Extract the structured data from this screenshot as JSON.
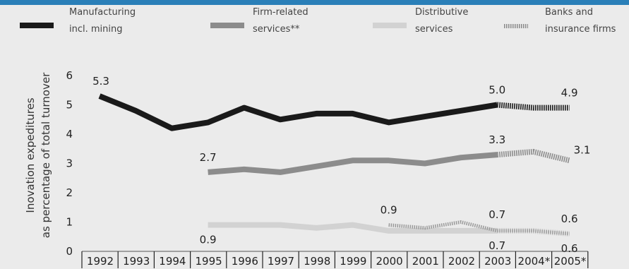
{
  "chart_data": {
    "type": "line",
    "x": [
      "1992",
      "1993",
      "1994",
      "1995",
      "1996",
      "1997",
      "1998",
      "1999",
      "2000",
      "2001",
      "2002",
      "2003",
      "2004*",
      "2005*"
    ],
    "ylabel_lines": [
      "Inovation expeditures",
      "as percentage of total turnover"
    ],
    "ylim": [
      0,
      6
    ],
    "yticks": [
      "0",
      "1",
      "2",
      "3",
      "4",
      "5",
      "6"
    ],
    "legend": [
      {
        "lines": [
          "Manufacturing",
          "incl. mining"
        ],
        "style": "black"
      },
      {
        "lines": [
          "Firm-related",
          "services**"
        ],
        "style": "darkgray"
      },
      {
        "lines": [
          "Distributive",
          "services"
        ],
        "style": "lightgray"
      },
      {
        "lines": [
          "Banks and",
          "insurance firms"
        ],
        "style": "hatched"
      }
    ],
    "series": [
      {
        "name": "Manufacturing incl. mining",
        "color": "#1a1a1a",
        "values": [
          5.3,
          4.8,
          4.2,
          4.4,
          4.9,
          4.5,
          4.7,
          4.7,
          4.4,
          4.6,
          4.8,
          5.0,
          4.9,
          4.9
        ]
      },
      {
        "name": "Firm-related services**",
        "color": "#8c8c8c",
        "values": [
          null,
          null,
          null,
          2.7,
          2.8,
          2.7,
          2.9,
          3.1,
          3.1,
          3.0,
          3.2,
          3.3,
          3.4,
          3.1
        ]
      },
      {
        "name": "Distributive services",
        "color": "#d2d2d2",
        "values": [
          null,
          null,
          null,
          0.9,
          0.9,
          0.9,
          0.8,
          0.9,
          0.7,
          0.7,
          0.7,
          0.7,
          0.7,
          0.6
        ]
      },
      {
        "name": "Banks and insurance firms",
        "color": "#9a9a9a",
        "values": [
          null,
          null,
          null,
          null,
          null,
          null,
          null,
          null,
          0.9,
          0.8,
          1.0,
          0.7,
          0.7,
          0.6
        ]
      }
    ],
    "data_labels": [
      {
        "series": 0,
        "index": 0,
        "text": "5.3",
        "pos": "above"
      },
      {
        "series": 0,
        "index": 11,
        "text": "5.0",
        "pos": "above"
      },
      {
        "series": 0,
        "index": 13,
        "text": "4.9",
        "pos": "above"
      },
      {
        "series": 1,
        "index": 3,
        "text": "2.7",
        "pos": "above"
      },
      {
        "series": 1,
        "index": 11,
        "text": "3.3",
        "pos": "above"
      },
      {
        "series": 1,
        "index": 13,
        "text": "3.1",
        "pos": "above-right"
      },
      {
        "series": 2,
        "index": 3,
        "text": "0.9",
        "pos": "below"
      },
      {
        "series": 2,
        "index": 11,
        "text": "0.7",
        "pos": "below"
      },
      {
        "series": 2,
        "index": 13,
        "text": "0.6",
        "pos": "below"
      },
      {
        "series": 3,
        "index": 8,
        "text": "0.9",
        "pos": "above"
      },
      {
        "series": 3,
        "index": 11,
        "text": "0.7",
        "pos": "above"
      },
      {
        "series": 3,
        "index": 13,
        "text": "0.6",
        "pos": "above"
      }
    ],
    "grid": false
  }
}
